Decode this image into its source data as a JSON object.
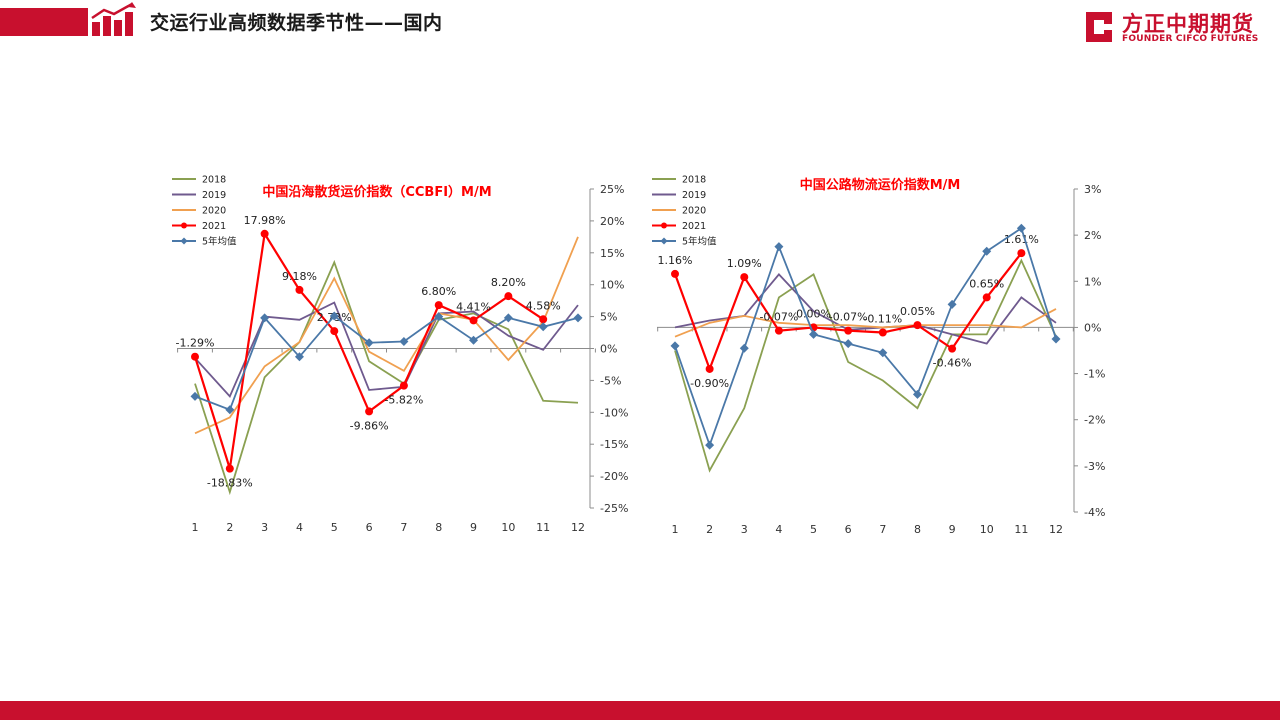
{
  "header": {
    "title": "交运行业高频数据季节性——国内",
    "logo_cn": "方正中期期货",
    "logo_en": "FOUNDER CIFCO FUTURES"
  },
  "colors": {
    "brand_red": "#c8102e",
    "s2018": "#8aa051",
    "s2019": "#6f5a8e",
    "s2020": "#f0a050",
    "s2021": "#ff0000",
    "savg": "#4a78a8"
  },
  "chart_data": [
    {
      "type": "line",
      "title": "中国沿海散货运价指数（CCBFI）M/M",
      "categories": [
        "1",
        "2",
        "3",
        "4",
        "5",
        "6",
        "7",
        "8",
        "9",
        "10",
        "11",
        "12"
      ],
      "ylim": [
        -25,
        25
      ],
      "yticks": [
        25,
        20,
        15,
        10,
        5,
        0,
        -5,
        -10,
        -15,
        -20,
        -25
      ],
      "ytick_labels": [
        "25%",
        "20%",
        "15%",
        "10%",
        "5%",
        "0%",
        "-5%",
        "-10%",
        "-15%",
        "-20%",
        "-25%"
      ],
      "legend_position": "top-left",
      "grid": false,
      "series": [
        {
          "name": "2018",
          "color_key": "s2018",
          "marker": "none",
          "values": [
            -5.5,
            -22.5,
            -4.5,
            1.0,
            13.5,
            -2.0,
            -5.5,
            4.5,
            5.5,
            3.0,
            -8.2,
            -8.5
          ]
        },
        {
          "name": "2019",
          "color_key": "s2019",
          "marker": "none",
          "values": [
            -1.5,
            -7.5,
            5.0,
            4.5,
            7.2,
            -6.5,
            -6.0,
            5.5,
            5.8,
            2.0,
            -0.2,
            6.8
          ]
        },
        {
          "name": "2020",
          "color_key": "s2020",
          "marker": "none",
          "values": [
            -13.3,
            -10.8,
            -2.8,
            1.0,
            11.0,
            -0.5,
            -3.5,
            5.5,
            4.5,
            -1.8,
            4.2,
            17.5
          ]
        },
        {
          "name": "2021",
          "color_key": "s2021",
          "marker": "circle",
          "values": [
            -1.29,
            -18.83,
            17.98,
            9.18,
            2.73,
            -9.86,
            -5.82,
            6.8,
            4.41,
            8.2,
            4.58,
            null
          ],
          "labels": [
            "-1.29%",
            "-18.83%",
            "17.98%",
            "9.18%",
            "2.73%",
            "-9.86%",
            "-5.82%",
            "6.80%",
            "4.41%",
            "8.20%",
            "4.58%",
            ""
          ]
        },
        {
          "name": "5年均值",
          "color_key": "savg",
          "marker": "diamond",
          "values": [
            -7.5,
            -9.6,
            4.8,
            -1.3,
            5.1,
            0.9,
            1.1,
            5.0,
            1.3,
            4.8,
            3.4,
            4.8
          ]
        }
      ]
    },
    {
      "type": "line",
      "title": "中国公路物流运价指数M/M",
      "categories": [
        "1",
        "2",
        "3",
        "4",
        "5",
        "6",
        "7",
        "8",
        "9",
        "10",
        "11",
        "12"
      ],
      "ylim": [
        -4,
        3
      ],
      "yticks": [
        3,
        2,
        1,
        0,
        -1,
        -2,
        -3,
        -4
      ],
      "ytick_labels": [
        "3%",
        "2%",
        "1%",
        "0%",
        "-1%",
        "-2%",
        "-3%",
        "-4%"
      ],
      "legend_position": "top-left",
      "grid": false,
      "series": [
        {
          "name": "2018",
          "color_key": "s2018",
          "marker": "none",
          "values": [
            -0.5,
            -3.1,
            -1.75,
            0.65,
            1.15,
            -0.75,
            -1.15,
            -1.75,
            -0.15,
            -0.15,
            1.45,
            -0.2
          ]
        },
        {
          "name": "2019",
          "color_key": "s2019",
          "marker": "none",
          "values": [
            0.0,
            0.15,
            0.25,
            1.15,
            0.35,
            -0.05,
            0.0,
            0.05,
            -0.15,
            -0.35,
            0.65,
            0.1
          ]
        },
        {
          "name": "2020",
          "color_key": "s2020",
          "marker": "none",
          "values": [
            -0.2,
            0.1,
            0.25,
            0.1,
            0.05,
            0.05,
            0.0,
            0.05,
            0.05,
            0.05,
            0.0,
            0.4
          ]
        },
        {
          "name": "2021",
          "color_key": "s2021",
          "marker": "circle",
          "values": [
            1.16,
            -0.9,
            1.09,
            -0.07,
            0.0,
            -0.07,
            -0.11,
            0.05,
            -0.46,
            0.65,
            1.61,
            null
          ],
          "labels": [
            "1.16%",
            "-0.90%",
            "1.09%",
            "-0.07%",
            "0.00%",
            "-0.07%",
            "-0.11%",
            "0.05%",
            "-0.46%",
            "0.65%",
            "1.61%",
            ""
          ]
        },
        {
          "name": "5年均值",
          "color_key": "savg",
          "marker": "diamond",
          "values": [
            -0.4,
            -2.55,
            -0.45,
            1.75,
            -0.15,
            -0.35,
            -0.55,
            -1.45,
            0.5,
            1.65,
            2.15,
            -0.25
          ]
        }
      ]
    }
  ]
}
